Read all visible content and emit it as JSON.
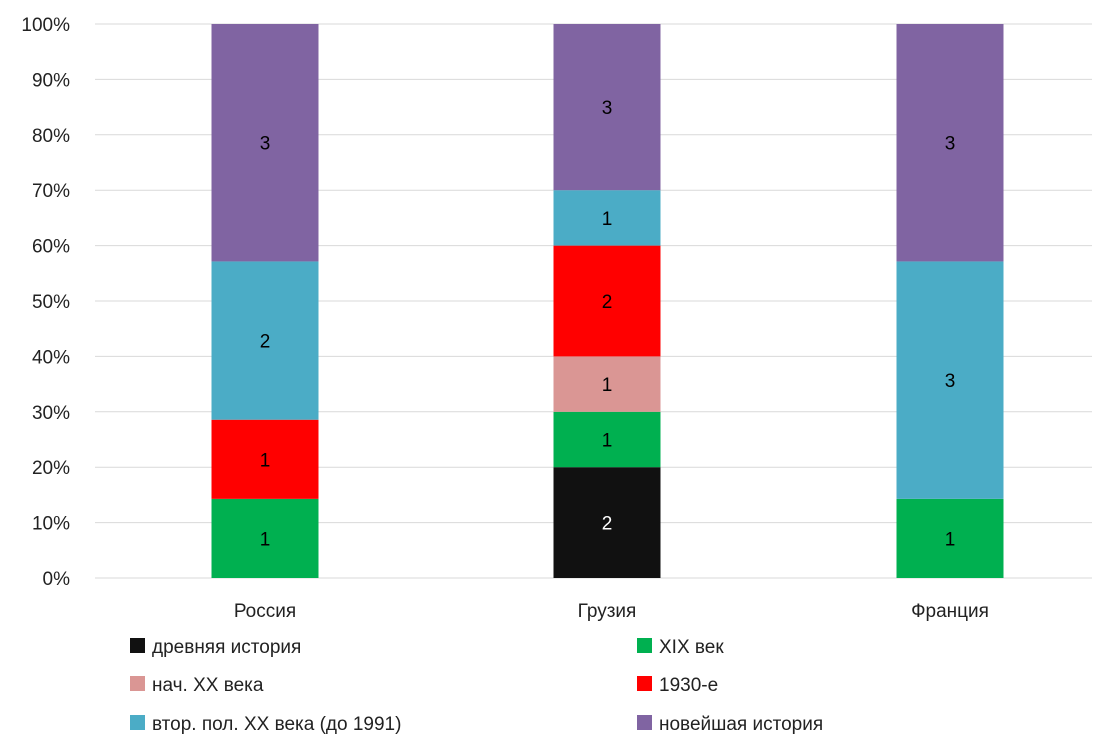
{
  "chart_data": {
    "type": "bar",
    "stacked": true,
    "normalized_percent": true,
    "categories": [
      "Россия",
      "Грузия",
      "Франция"
    ],
    "y_axis": {
      "ylim": [
        0,
        100
      ],
      "ticks": [
        "0%",
        "10%",
        "20%",
        "30%",
        "40%",
        "50%",
        "60%",
        "70%",
        "80%",
        "90%",
        "100%"
      ]
    },
    "grid": true,
    "legend_position": "bottom",
    "series": [
      {
        "name": "древняя история",
        "color": "#111111",
        "label_color": "#ffffff",
        "values": [
          0,
          2,
          0
        ]
      },
      {
        "name": "XIX век",
        "color": "#00b050",
        "label_color": "#000000",
        "values": [
          1,
          1,
          1
        ]
      },
      {
        "name": "нач. XX века",
        "color": "#da9694",
        "label_color": "#000000",
        "values": [
          0,
          1,
          0
        ]
      },
      {
        "name": "1930-е",
        "color": "#ff0000",
        "label_color": "#000000",
        "values": [
          1,
          2,
          0
        ]
      },
      {
        "name": "втор. пол. XX века (до 1991)",
        "color": "#4bacc6",
        "label_color": "#000000",
        "values": [
          2,
          1,
          3
        ]
      },
      {
        "name": "новейшая история",
        "color": "#8064a2",
        "label_color": "#000000",
        "values": [
          3,
          3,
          3
        ]
      }
    ]
  }
}
